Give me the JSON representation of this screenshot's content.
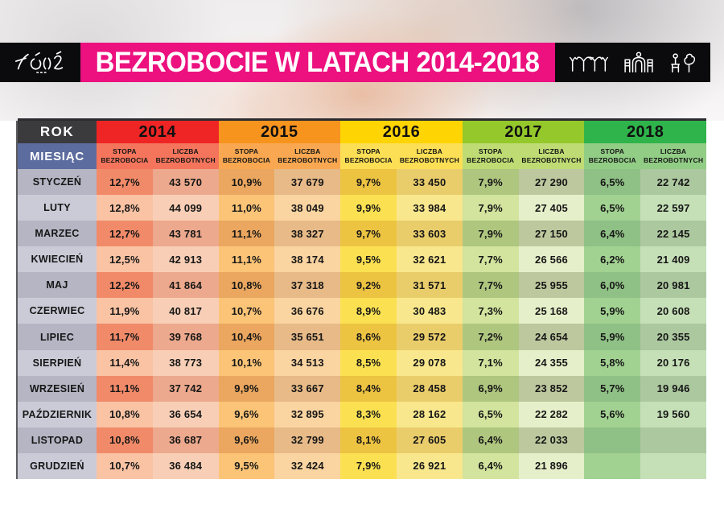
{
  "brand": {
    "logo_text": "ŁÓDŹ"
  },
  "header": {
    "title": "BEZROBOCIE W LATACH 2014-2018",
    "bar_color": "#EC117F",
    "icons": [
      "station-canopy-icon",
      "gate-icon",
      "park-icon"
    ]
  },
  "table": {
    "corner": {
      "rok": "ROK",
      "miesiac": "MIESIĄC"
    },
    "sub_labels": {
      "rate": [
        "STOPA",
        "BEZROBOCIA"
      ],
      "count": [
        "LICZBA",
        "BEZROBOTNYCH"
      ]
    },
    "row_header_colors": {
      "rok": "#3B3B3D",
      "miesiac": "#5D6C9E",
      "month_odd": "#B5B5C4",
      "month_even": "#CBCBD8"
    },
    "months": [
      "STYCZEŃ",
      "LUTY",
      "MARZEC",
      "KWIECIEŃ",
      "MAJ",
      "CZERWIEC",
      "LIPIEC",
      "SIERPIEŃ",
      "WRZESIEŃ",
      "PAŹDZIERNIK",
      "LISTOPAD",
      "GRUDZIEŃ"
    ],
    "years": [
      {
        "label": "2014",
        "colors": {
          "header": "#EE2524",
          "sub": "#F4755C",
          "rate_odd": "#F18A69",
          "count_odd": "#ECA98D",
          "rate_even": "#F9C3A4",
          "count_even": "#F8CFB6"
        },
        "rate": [
          "12,7%",
          "12,8%",
          "12,7%",
          "12,5%",
          "12,2%",
          "11,9%",
          "11,7%",
          "11,4%",
          "11,1%",
          "10,8%",
          "10,8%",
          "10,7%"
        ],
        "count": [
          "43 570",
          "44 099",
          "43 781",
          "42 913",
          "41 864",
          "40 817",
          "39 768",
          "38 773",
          "37 742",
          "36 654",
          "36 687",
          "36 484"
        ]
      },
      {
        "label": "2015",
        "colors": {
          "header": "#F7941E",
          "sub": "#F9A851",
          "rate_odd": "#EBA75F",
          "count_odd": "#E7BA88",
          "rate_even": "#FBC477",
          "count_even": "#FAD4A1"
        },
        "rate": [
          "10,9%",
          "11,0%",
          "11,1%",
          "11,1%",
          "10,8%",
          "10,7%",
          "10,4%",
          "10,1%",
          "9,9%",
          "9,6%",
          "9,6%",
          "9,5%"
        ],
        "count": [
          "37 679",
          "38 049",
          "38 327",
          "38 174",
          "37 318",
          "36 676",
          "35 651",
          "34 513",
          "33 667",
          "32 895",
          "32 799",
          "32 424"
        ]
      },
      {
        "label": "2016",
        "colors": {
          "header": "#FFD403",
          "sub": "#FCDF55",
          "rate_odd": "#EDC342",
          "count_odd": "#EACD6B",
          "rate_even": "#FBE152",
          "count_even": "#F8E78D"
        },
        "rate": [
          "9,7%",
          "9,9%",
          "9,7%",
          "9,5%",
          "9,2%",
          "8,9%",
          "8,6%",
          "8,5%",
          "8,4%",
          "8,3%",
          "8,1%",
          "7,9%"
        ],
        "count": [
          "33 450",
          "33 984",
          "33 603",
          "32 621",
          "31 571",
          "30 483",
          "29 572",
          "29 078",
          "28 458",
          "28 162",
          "27 605",
          "26 921"
        ]
      },
      {
        "label": "2017",
        "colors": {
          "header": "#94C82B",
          "sub": "#BFDC74",
          "rate_odd": "#AFC67F",
          "count_odd": "#BDC89E",
          "rate_even": "#D2E49D",
          "count_even": "#E5EFC9"
        },
        "rate": [
          "7,9%",
          "7,9%",
          "7,9%",
          "7,7%",
          "7,7%",
          "7,3%",
          "7,2%",
          "7,1%",
          "6,9%",
          "6,5%",
          "6,4%",
          "6,4%"
        ],
        "count": [
          "27 290",
          "27 405",
          "27 150",
          "26 566",
          "25 955",
          "25 168",
          "24 654",
          "24 355",
          "23 852",
          "22 282",
          "22 033",
          "21 896"
        ]
      },
      {
        "label": "2018",
        "colors": {
          "header": "#2FB44B",
          "sub": "#92CD86",
          "rate_odd": "#8FC085",
          "count_odd": "#ACC89F",
          "rate_even": "#A2D292",
          "count_even": "#C5E0B7"
        },
        "rate": [
          "6,5%",
          "6,5%",
          "6,4%",
          "6,2%",
          "6,0%",
          "5,9%",
          "5,9%",
          "5,8%",
          "5,7%",
          "5,6%",
          "",
          ""
        ],
        "count": [
          "22 742",
          "22 597",
          "22 145",
          "21 409",
          "20 981",
          "20 608",
          "20 355",
          "20 176",
          "19 946",
          "19 560",
          "",
          ""
        ]
      }
    ]
  },
  "chart_data": {
    "type": "table",
    "title": "BEZROBOCIE W LATACH 2014-2018",
    "row_labels": [
      "STYCZEŃ",
      "LUTY",
      "MARZEC",
      "KWIECIEŃ",
      "MAJ",
      "CZERWIEC",
      "LIPIEC",
      "SIERPIEŃ",
      "WRZESIEŃ",
      "PAŹDZIERNIK",
      "LISTOPAD",
      "GRUDZIEŃ"
    ],
    "column_groups": [
      "2014",
      "2015",
      "2016",
      "2017",
      "2018"
    ],
    "columns_per_group": [
      "STOPA BEZROBOCIA",
      "LICZBA BEZROBOTNYCH"
    ],
    "series": [
      {
        "name": "2014",
        "stopa_bezrobocia_pct": [
          12.7,
          12.8,
          12.7,
          12.5,
          12.2,
          11.9,
          11.7,
          11.4,
          11.1,
          10.8,
          10.8,
          10.7
        ],
        "liczba_bezrobotnych": [
          43570,
          44099,
          43781,
          42913,
          41864,
          40817,
          39768,
          38773,
          37742,
          36654,
          36687,
          36484
        ]
      },
      {
        "name": "2015",
        "stopa_bezrobocia_pct": [
          10.9,
          11.0,
          11.1,
          11.1,
          10.8,
          10.7,
          10.4,
          10.1,
          9.9,
          9.6,
          9.6,
          9.5
        ],
        "liczba_bezrobotnych": [
          37679,
          38049,
          38327,
          38174,
          37318,
          36676,
          35651,
          34513,
          33667,
          32895,
          32799,
          32424
        ]
      },
      {
        "name": "2016",
        "stopa_bezrobocia_pct": [
          9.7,
          9.9,
          9.7,
          9.5,
          9.2,
          8.9,
          8.6,
          8.5,
          8.4,
          8.3,
          8.1,
          7.9
        ],
        "liczba_bezrobotnych": [
          33450,
          33984,
          33603,
          32621,
          31571,
          30483,
          29572,
          29078,
          28458,
          28162,
          27605,
          26921
        ]
      },
      {
        "name": "2017",
        "stopa_bezrobocia_pct": [
          7.9,
          7.9,
          7.9,
          7.7,
          7.7,
          7.3,
          7.2,
          7.1,
          6.9,
          6.5,
          6.4,
          6.4
        ],
        "liczba_bezrobotnych": [
          27290,
          27405,
          27150,
          26566,
          25955,
          25168,
          24654,
          24355,
          23852,
          22282,
          22033,
          21896
        ]
      },
      {
        "name": "2018",
        "stopa_bezrobocia_pct": [
          6.5,
          6.5,
          6.4,
          6.2,
          6.0,
          5.9,
          5.9,
          5.8,
          5.7,
          5.6,
          null,
          null
        ],
        "liczba_bezrobotnych": [
          22742,
          22597,
          22145,
          21409,
          20981,
          20608,
          20355,
          20176,
          19946,
          19560,
          null,
          null
        ]
      }
    ]
  }
}
